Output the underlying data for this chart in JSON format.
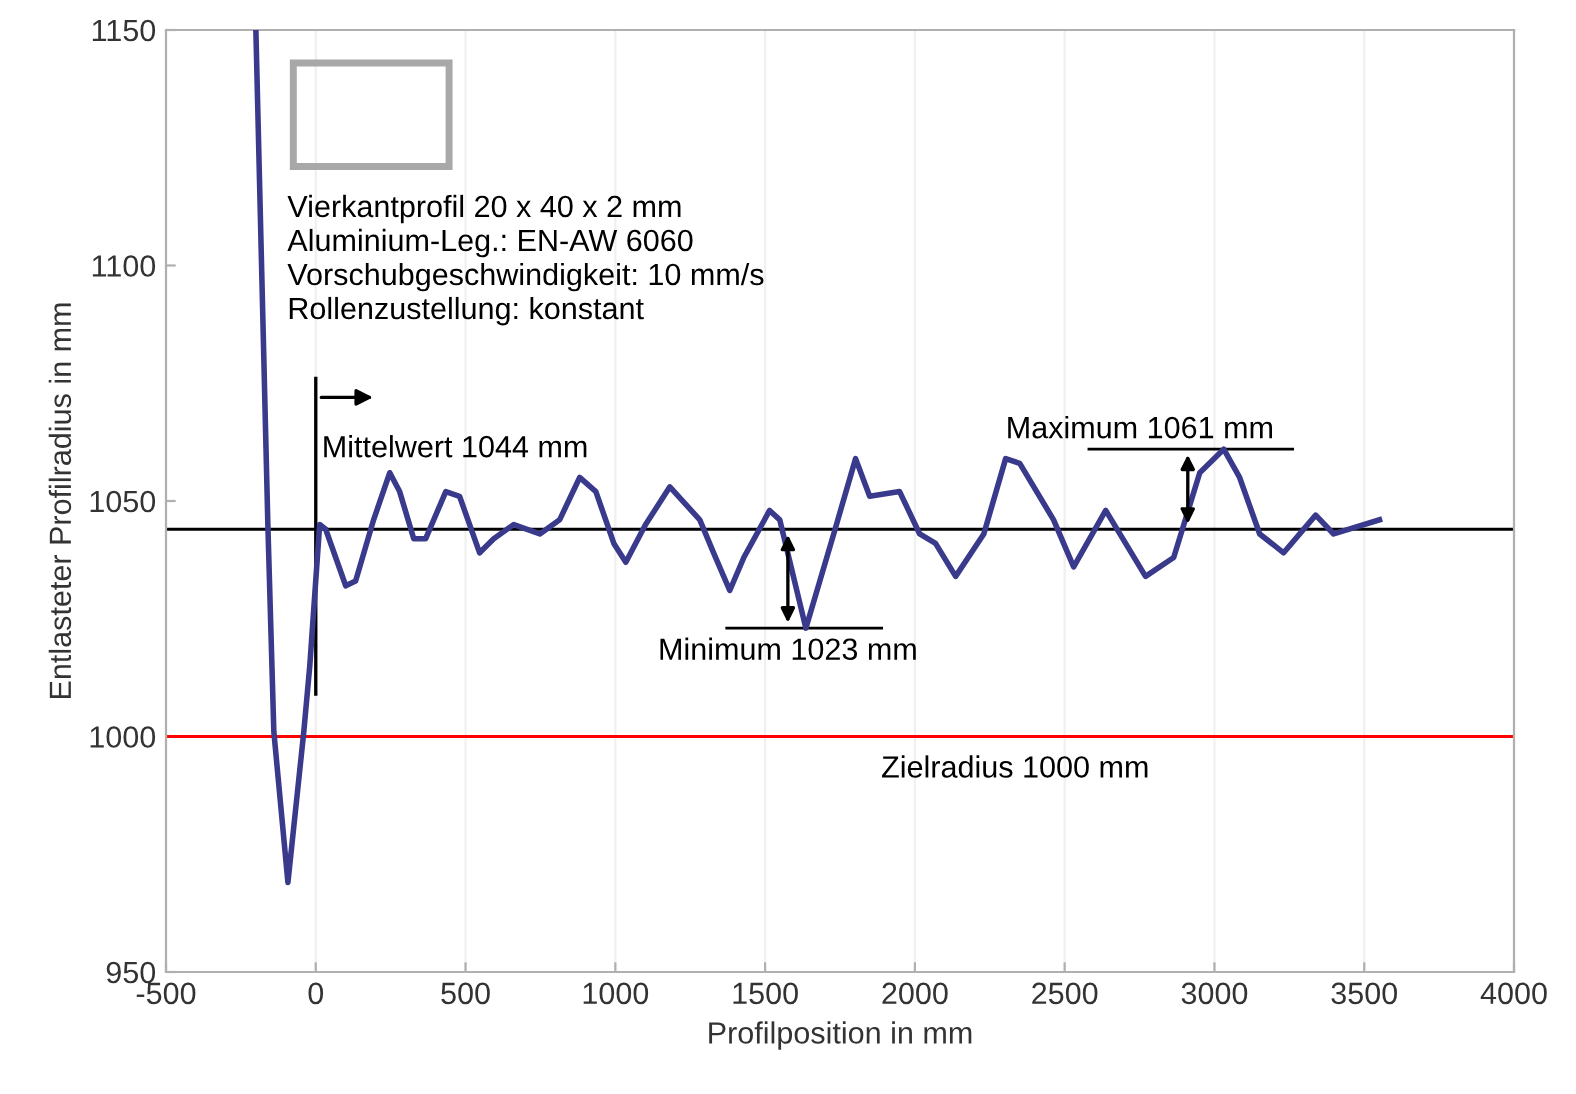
{
  "chart_data": {
    "type": "line",
    "xlabel": "Profilposition in mm",
    "ylabel": "Entlasteter Profilradius in mm",
    "xlim": [
      -500,
      4000
    ],
    "ylim": [
      950,
      1150
    ],
    "xticks": [
      -500,
      0,
      500,
      1000,
      1500,
      2000,
      2500,
      3000,
      3500,
      4000
    ],
    "yticks": [
      950,
      1000,
      1050,
      1100,
      1150
    ],
    "grid": "x",
    "marker": "none",
    "line_style": "solid",
    "series": [
      {
        "color": "#3a3a8c",
        "x": [
          -200,
          -160,
          -140,
          -93,
          -40,
          -20,
          13,
          33,
          100,
          133,
          193,
          247,
          280,
          327,
          367,
          434,
          480,
          547,
          594,
          661,
          748,
          814,
          881,
          935,
          995,
          1035,
          1101,
          1182,
          1282,
          1328,
          1382,
          1429,
          1515,
          1549,
          1636,
          1729,
          1802,
          1849,
          1949,
          2016,
          2069,
          2136,
          2230,
          2303,
          2350,
          2463,
          2530,
          2637,
          2770,
          2864,
          2951,
          3031,
          3084,
          3151,
          3231,
          3338,
          3398,
          3551
        ],
        "values": [
          1150,
          1045,
          1001,
          969,
          1001,
          1015,
          1045,
          1044,
          1032,
          1033,
          1046,
          1056,
          1052,
          1042,
          1042,
          1052,
          1051,
          1039,
          1042,
          1045,
          1043,
          1046,
          1055,
          1052,
          1041,
          1037,
          1045,
          1053,
          1046,
          1039,
          1031,
          1038,
          1048,
          1046,
          1023,
          1043,
          1059,
          1051,
          1052,
          1043,
          1041,
          1034,
          1043,
          1059,
          1058,
          1046,
          1036,
          1048,
          1034,
          1038,
          1056,
          1061,
          1055,
          1043,
          1039,
          1047,
          1043,
          1046
        ]
      }
    ],
    "ref_lines": [
      {
        "axis": "y",
        "value": 1044,
        "label": "Mittelwert 1044 mm",
        "color": "#000000"
      },
      {
        "axis": "y",
        "value": 1000,
        "label": "Zielradius 1000 mm",
        "color": "#ff0000"
      }
    ],
    "annotations": [
      "Vierkantprofil 20 x 40 x 2 mm\nAluminium-Leg.: EN-AW 6060\nVorschubgeschwindigkeit: 10 mm/s\nRollenzustellung: konstant",
      {
        "text": "Minimum 1023 mm",
        "x": 1636,
        "y": 1023
      },
      {
        "text": "Maximum 1061 mm",
        "x": 3031,
        "y": 1061
      }
    ]
  }
}
